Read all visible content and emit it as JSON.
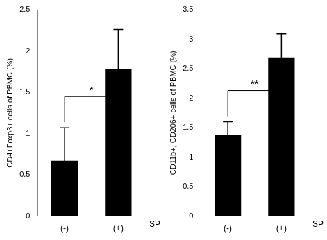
{
  "chart_data": [
    {
      "type": "bar",
      "categories": [
        "(-)",
        "(+)"
      ],
      "values": [
        0.67,
        1.78
      ],
      "errors": [
        0.4,
        0.48
      ],
      "x_label": "SP",
      "y_label": "CD4+Foxp3+ cells of PBMC (%)",
      "color": "#000000",
      "ylim": [
        0,
        2.5
      ],
      "yticks": [
        0,
        0.5,
        1,
        1.5,
        2,
        2.5
      ],
      "grid": false,
      "annotations": [
        {
          "text": "*",
          "between": [
            "(-)",
            "(+)"
          ]
        }
      ]
    },
    {
      "type": "bar",
      "categories": [
        "(-)",
        "(+)"
      ],
      "values": [
        1.38,
        2.69
      ],
      "errors": [
        0.22,
        0.4
      ],
      "x_label": "SP",
      "y_label": "CD11b+, CD206+ cells of PBMC (%)",
      "color": "#000000",
      "ylim": [
        0,
        3.5
      ],
      "yticks": [
        0,
        0.5,
        1,
        1.5,
        2,
        2.5,
        3,
        3.5
      ],
      "grid": false,
      "annotations": [
        {
          "text": "**",
          "between": [
            "(-)",
            "(+)"
          ]
        }
      ]
    }
  ]
}
